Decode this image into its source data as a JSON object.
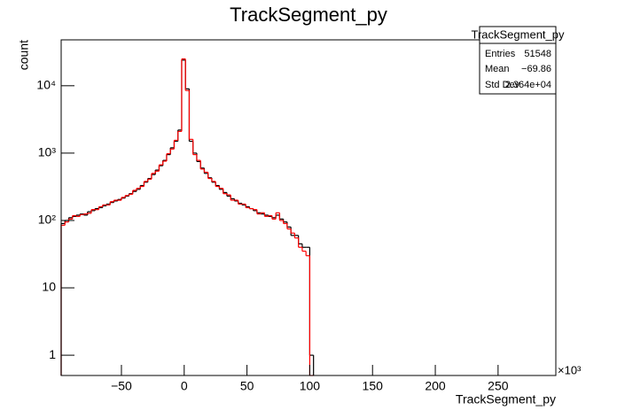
{
  "chart_data": {
    "type": "histogram",
    "title": "TrackSegment_py",
    "x_label": "TrackSegment_py",
    "y_label": "count",
    "x_exponent": "×10³",
    "log_y": true,
    "xlim": [
      -98,
      296
    ],
    "ylim": [
      0.5,
      48000
    ],
    "xticks": [
      {
        "value": -50,
        "label": "−50"
      },
      0,
      50,
      100,
      150,
      200,
      250
    ],
    "yticks": [
      1,
      10,
      {
        "value": 100,
        "label": "10²"
      },
      {
        "value": 1000,
        "label": "10³"
      },
      {
        "value": 10000,
        "label": "10⁴"
      }
    ],
    "bins": [
      -98,
      -95,
      -92,
      -89,
      -86,
      -83,
      -80,
      -77,
      -74,
      -71,
      -68,
      -65,
      -62,
      -59,
      -56,
      -53,
      -50,
      -47,
      -44,
      -41,
      -38,
      -35,
      -32,
      -29,
      -26,
      -23,
      -20,
      -17,
      -14,
      -11,
      -8,
      -5,
      -2,
      1,
      4,
      7,
      10,
      13,
      16,
      19,
      22,
      25,
      28,
      31,
      34,
      37,
      40,
      43,
      46,
      49,
      52,
      55,
      58,
      61,
      64,
      67,
      70,
      73,
      76,
      79,
      82,
      85,
      88,
      91,
      94,
      97,
      100,
      103
    ],
    "series": [
      {
        "color": "#000000",
        "values": [
          90,
          100,
          110,
          115,
          120,
          125,
          120,
          135,
          140,
          150,
          155,
          165,
          175,
          185,
          195,
          205,
          215,
          230,
          250,
          270,
          290,
          330,
          370,
          420,
          480,
          560,
          650,
          780,
          950,
          1200,
          1500,
          2200,
          24000,
          9000,
          1500,
          1000,
          750,
          600,
          500,
          430,
          370,
          330,
          290,
          260,
          230,
          210,
          195,
          180,
          170,
          160,
          150,
          140,
          130,
          125,
          120,
          115,
          110,
          120,
          105,
          95,
          80,
          60,
          60,
          45,
          40,
          40,
          1
        ]
      },
      {
        "color": "#ff0000",
        "values": [
          85,
          95,
          105,
          118,
          115,
          122,
          125,
          128,
          145,
          145,
          160,
          170,
          170,
          190,
          200,
          200,
          220,
          235,
          245,
          280,
          300,
          320,
          380,
          410,
          500,
          540,
          670,
          760,
          980,
          1150,
          1550,
          2100,
          25000,
          8500,
          1600,
          950,
          780,
          580,
          520,
          420,
          380,
          320,
          300,
          250,
          240,
          200,
          200,
          175,
          175,
          155,
          150,
          145,
          125,
          130,
          115,
          118,
          105,
          130,
          100,
          90,
          75,
          65,
          55,
          40,
          35,
          30,
          0
        ]
      }
    ],
    "stats": {
      "title": "TrackSegment_py",
      "rows": [
        [
          "Entries",
          "51548"
        ],
        [
          "Mean",
          "−69.86"
        ],
        [
          "Std Dev",
          "2.364e+04"
        ]
      ]
    }
  }
}
